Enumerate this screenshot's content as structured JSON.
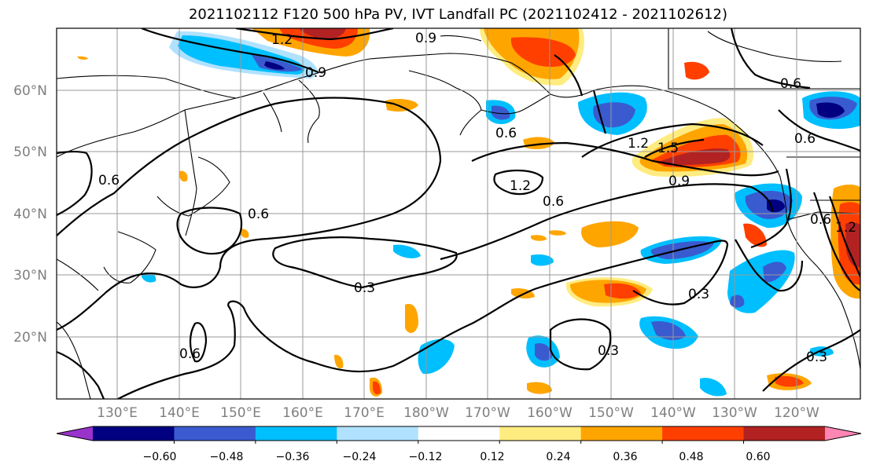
{
  "title": "2021102112 F120 500 hPa PV, IVT Landfall PC (2021102412 - 2021102612)",
  "y_ticks": [
    "60°N",
    "50°N",
    "40°N",
    "30°N",
    "20°N"
  ],
  "x_ticks": [
    "130°E",
    "140°E",
    "150°E",
    "160°E",
    "170°E",
    "180°W",
    "170°W",
    "160°W",
    "150°W",
    "140°W",
    "130°W",
    "120°W"
  ],
  "contour_labels": [
    "1.2",
    "0.9",
    "0.9",
    "0.6",
    "0.6",
    "0.6",
    "0.6",
    "1.2",
    "1.5",
    "1.2",
    "0.9",
    "0.6",
    "0.6",
    "0.3",
    "0.3",
    "0.6",
    "0.3",
    "0.3",
    "0.6",
    "1.2"
  ],
  "colorbar": {
    "tick_labels": [
      "−0.60",
      "−0.48",
      "−0.36",
      "−0.24",
      "−0.12",
      "0.12",
      "0.24",
      "0.36",
      "0.48",
      "0.60"
    ],
    "colors": [
      "#9933cc",
      "#000080",
      "#3a5bcf",
      "#00bfff",
      "#b0e2ff",
      "#ffffff",
      "#ffec80",
      "#ffa500",
      "#ff3f00",
      "#b22222",
      "#ff85b4"
    ]
  }
}
